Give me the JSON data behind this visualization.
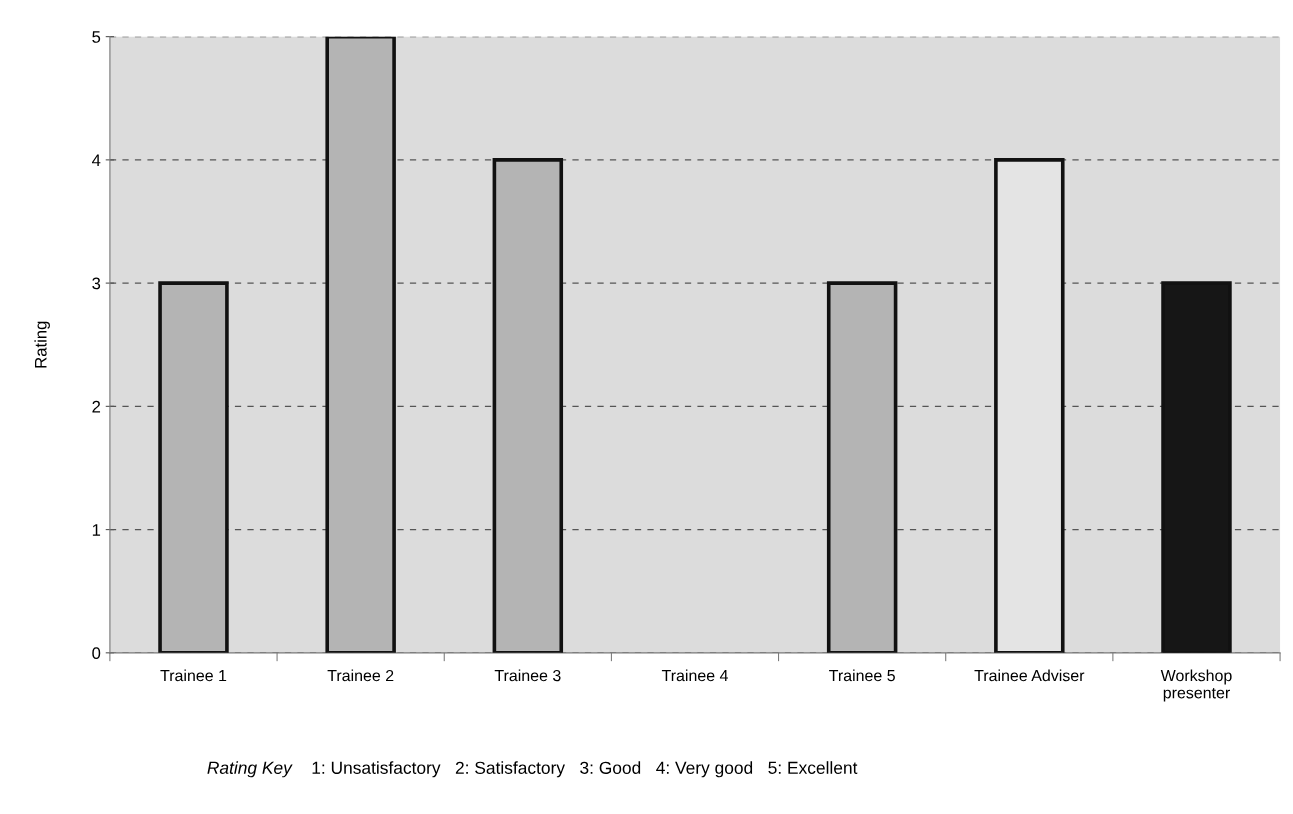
{
  "chart_data": {
    "type": "bar",
    "ylabel": "Rating",
    "categories": [
      "Trainee 1",
      "Trainee 2",
      "Trainee 3",
      "Trainee 4",
      "Trainee 5",
      "Trainee Adviser",
      "Workshop\npresenter"
    ],
    "values": [
      3,
      5,
      4,
      null,
      3,
      4,
      3
    ],
    "colors": [
      "#b4b4b4",
      "#b4b4b4",
      "#b4b4b4",
      "#b4b4b4",
      "#b4b4b4",
      "#e4e4e4",
      "#161616"
    ],
    "ylim": [
      0,
      5
    ],
    "yticks": [
      0,
      1,
      2,
      3,
      4,
      5
    ],
    "grid": "y",
    "annotations": [
      "Rating Key",
      "1: Unsatisfactory   2: Satisfactory   3: Good   4: Very good   5: Excellent"
    ]
  }
}
